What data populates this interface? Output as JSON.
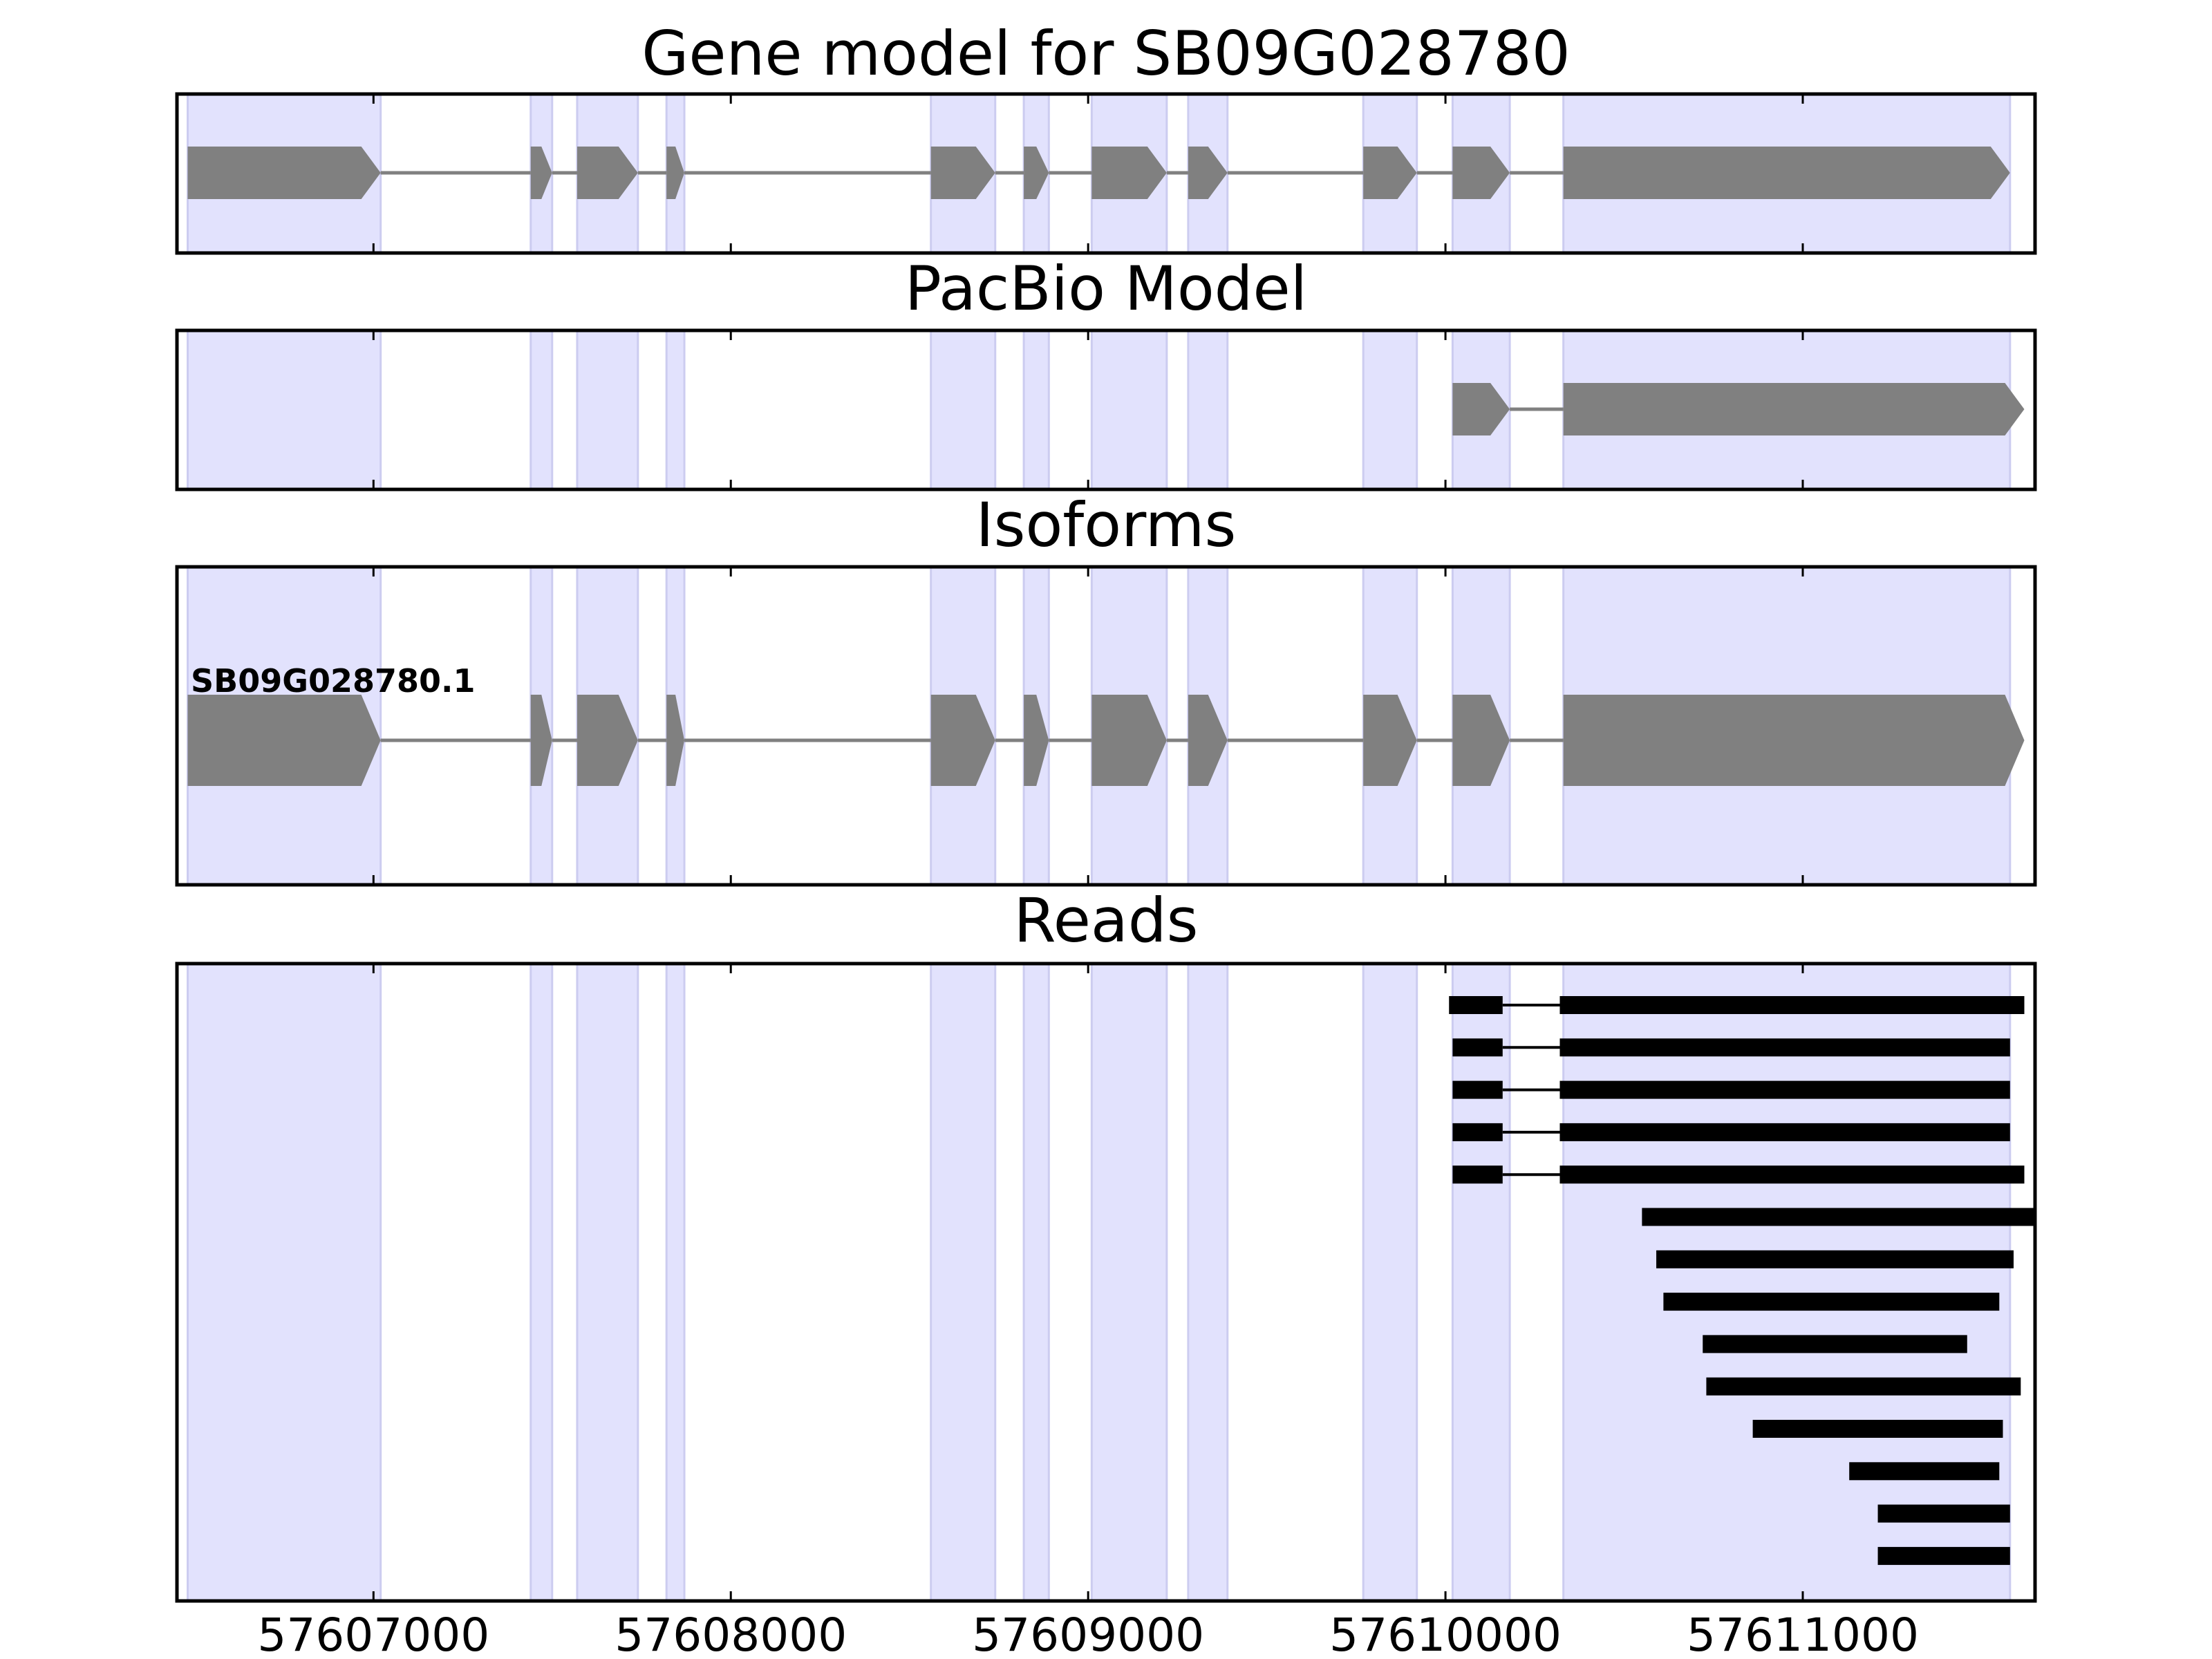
{
  "chart_data": [
    {
      "type": "gene-track",
      "title": "Gene model for SB09G028780",
      "features": [
        {
          "exons": [
            [
              57606480,
              57607020
            ],
            [
              57607440,
              57607500
            ],
            [
              57607570,
              57607740
            ],
            [
              57607820,
              57607870
            ],
            [
              57608560,
              57608740
            ],
            [
              57608820,
              57608890
            ],
            [
              57609010,
              57609220
            ],
            [
              57609280,
              57609390
            ],
            [
              57609770,
              57609920
            ],
            [
              57610020,
              57610180
            ],
            [
              57610330,
              57611580
            ]
          ],
          "color": "#808080"
        }
      ]
    },
    {
      "type": "gene-track",
      "title": "PacBio Model",
      "features": [
        {
          "exons": [
            [
              57610020,
              57610180
            ],
            [
              57610330,
              57611620
            ]
          ],
          "color": "#808080"
        }
      ]
    },
    {
      "type": "gene-track",
      "title": "Isoforms",
      "features": [
        {
          "label": "SB09G028780.1",
          "exons": [
            [
              57606480,
              57607020
            ],
            [
              57607440,
              57607500
            ],
            [
              57607570,
              57607740
            ],
            [
              57607820,
              57607870
            ],
            [
              57608560,
              57608740
            ],
            [
              57608820,
              57608890
            ],
            [
              57609010,
              57609220
            ],
            [
              57609280,
              57609390
            ],
            [
              57609770,
              57609920
            ],
            [
              57610020,
              57610180
            ],
            [
              57610330,
              57611620
            ]
          ],
          "color": "#808080"
        }
      ]
    },
    {
      "type": "gene-track",
      "title": "Reads",
      "features": [
        {
          "exons": [
            [
              57610010,
              57610160
            ],
            [
              57610320,
              57611620
            ]
          ],
          "color": "#000000"
        },
        {
          "exons": [
            [
              57610020,
              57610160
            ],
            [
              57610320,
              57611580
            ]
          ],
          "color": "#000000"
        },
        {
          "exons": [
            [
              57610020,
              57610160
            ],
            [
              57610320,
              57611580
            ]
          ],
          "color": "#000000"
        },
        {
          "exons": [
            [
              57610020,
              57610160
            ],
            [
              57610320,
              57611580
            ]
          ],
          "color": "#000000"
        },
        {
          "exons": [
            [
              57610020,
              57610160
            ],
            [
              57610320,
              57611620
            ]
          ],
          "color": "#000000"
        },
        {
          "exons": [
            [
              57610550,
              57611650
            ]
          ],
          "color": "#000000"
        },
        {
          "exons": [
            [
              57610590,
              57611590
            ]
          ],
          "color": "#000000"
        },
        {
          "exons": [
            [
              57610610,
              57611550
            ]
          ],
          "color": "#000000"
        },
        {
          "exons": [
            [
              57610720,
              57611460
            ]
          ],
          "color": "#000000"
        },
        {
          "exons": [
            [
              57610730,
              57611610
            ]
          ],
          "color": "#000000"
        },
        {
          "exons": [
            [
              57610860,
              57611560
            ]
          ],
          "color": "#000000"
        },
        {
          "exons": [
            [
              57611130,
              57611550
            ]
          ],
          "color": "#000000"
        },
        {
          "exons": [
            [
              57611210,
              57611580
            ]
          ],
          "color": "#000000"
        },
        {
          "exons": [
            [
              57611210,
              57611580
            ]
          ],
          "color": "#000000"
        }
      ]
    }
  ],
  "shared_x": {
    "xlim": [
      57606450,
      57611650
    ],
    "ticks": [
      57607000,
      57608000,
      57609000,
      57610000,
      57611000
    ],
    "tick_labels": [
      "57607000",
      "57608000",
      "57609000",
      "57610000",
      "57611000"
    ]
  },
  "highlight_regions": [
    [
      57606480,
      57607020
    ],
    [
      57607440,
      57607500
    ],
    [
      57607570,
      57607740
    ],
    [
      57607820,
      57607870
    ],
    [
      57608560,
      57608740
    ],
    [
      57608820,
      57608890
    ],
    [
      57609010,
      57609220
    ],
    [
      57609280,
      57609390
    ],
    [
      57609770,
      57609920
    ],
    [
      57610020,
      57610180
    ],
    [
      57610330,
      57611580
    ]
  ],
  "colors": {
    "highlight": "#e2e2fd",
    "highlight_edge": "#ccccf0",
    "exon": "#808080",
    "read": "#000000",
    "intron": "#808080",
    "axes": "#000000"
  }
}
